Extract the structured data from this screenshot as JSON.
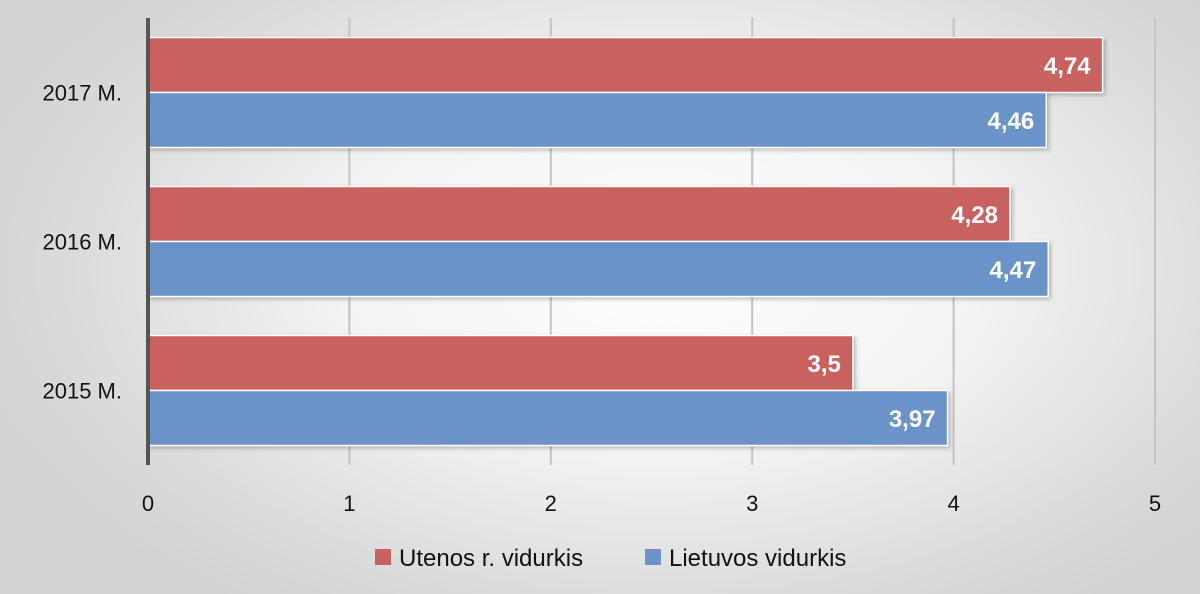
{
  "chart_data": {
    "type": "bar",
    "orientation": "horizontal",
    "categories": [
      "2017 M.",
      "2016 M.",
      "2015 M."
    ],
    "series": [
      {
        "name": "Utenos r. vidurkis",
        "color": "#c9625f",
        "values": [
          4.74,
          4.28,
          3.5
        ],
        "labels": [
          "4,74",
          "4,28",
          "3,5"
        ]
      },
      {
        "name": "Lietuvos vidurkis",
        "color": "#6a93c7",
        "values": [
          4.46,
          4.47,
          3.97
        ],
        "labels": [
          "4,46",
          "4,47",
          "3,97"
        ]
      }
    ],
    "xlim": [
      0,
      5
    ],
    "xticks": [
      "0",
      "1",
      "2",
      "3",
      "4",
      "5"
    ],
    "grid": true,
    "legend": "bottom"
  }
}
